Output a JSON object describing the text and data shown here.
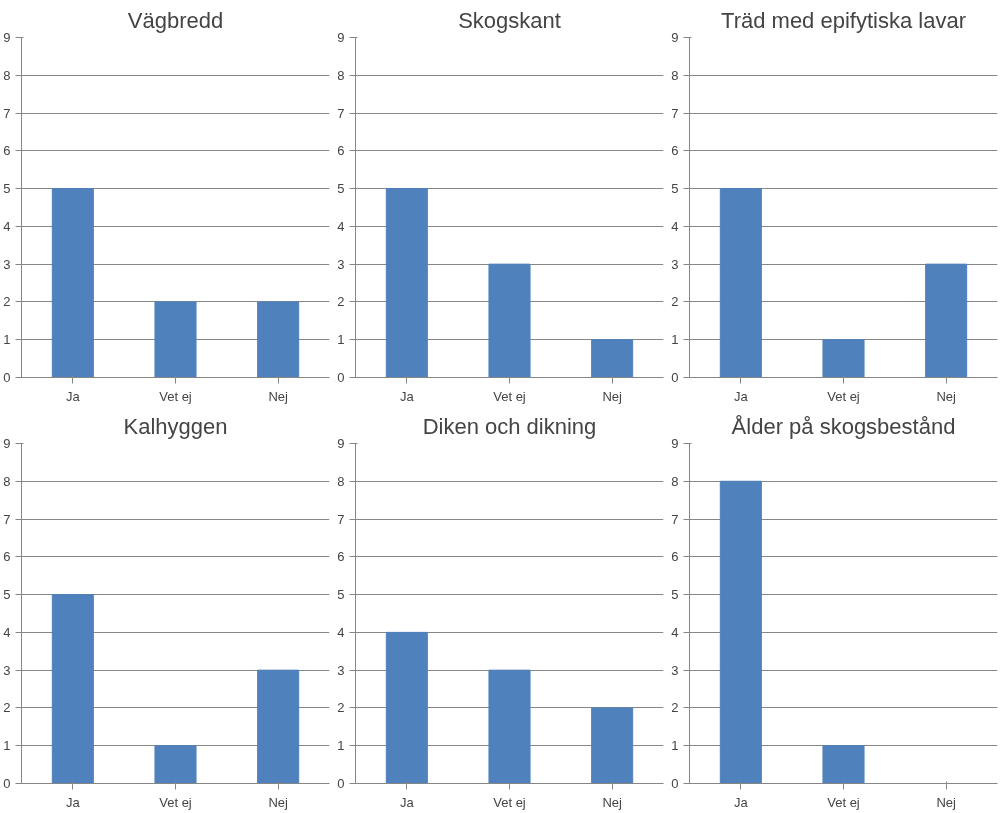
{
  "chart_data": [
    {
      "type": "bar",
      "title": "Vägbredd",
      "categories": [
        "Ja",
        "Vet ej",
        "Nej"
      ],
      "values": [
        5,
        2,
        2
      ],
      "color": "#4f81bd",
      "ylim": [
        0,
        9
      ],
      "yticks": [
        0,
        1,
        2,
        3,
        4,
        5,
        6,
        7,
        8,
        9
      ],
      "grid": "y"
    },
    {
      "type": "bar",
      "title": "Skogskant",
      "categories": [
        "Ja",
        "Vet ej",
        "Nej"
      ],
      "values": [
        5,
        3,
        1
      ],
      "color": "#4f81bd",
      "ylim": [
        0,
        9
      ],
      "yticks": [
        0,
        1,
        2,
        3,
        4,
        5,
        6,
        7,
        8,
        9
      ],
      "grid": "y"
    },
    {
      "type": "bar",
      "title": "Träd med epifytiska lavar",
      "categories": [
        "Ja",
        "Vet ej",
        "Nej"
      ],
      "values": [
        5,
        1,
        3
      ],
      "color": "#4f81bd",
      "ylim": [
        0,
        9
      ],
      "yticks": [
        0,
        1,
        2,
        3,
        4,
        5,
        6,
        7,
        8,
        9
      ],
      "grid": "y"
    },
    {
      "type": "bar",
      "title": "Kalhyggen",
      "categories": [
        "Ja",
        "Vet ej",
        "Nej"
      ],
      "values": [
        5,
        1,
        3
      ],
      "color": "#4f81bd",
      "ylim": [
        0,
        9
      ],
      "yticks": [
        0,
        1,
        2,
        3,
        4,
        5,
        6,
        7,
        8,
        9
      ],
      "grid": "y"
    },
    {
      "type": "bar",
      "title": "Diken och dikning",
      "categories": [
        "Ja",
        "Vet ej",
        "Nej"
      ],
      "values": [
        4,
        3,
        2
      ],
      "color": "#4f81bd",
      "ylim": [
        0,
        9
      ],
      "yticks": [
        0,
        1,
        2,
        3,
        4,
        5,
        6,
        7,
        8,
        9
      ],
      "grid": "y"
    },
    {
      "type": "bar",
      "title": "Ålder på skogsbestånd",
      "categories": [
        "Ja",
        "Vet ej",
        "Nej"
      ],
      "values": [
        8,
        1,
        0
      ],
      "color": "#4f81bd",
      "ylim": [
        0,
        9
      ],
      "yticks": [
        0,
        1,
        2,
        3,
        4,
        5,
        6,
        7,
        8,
        9
      ],
      "grid": "y"
    }
  ]
}
